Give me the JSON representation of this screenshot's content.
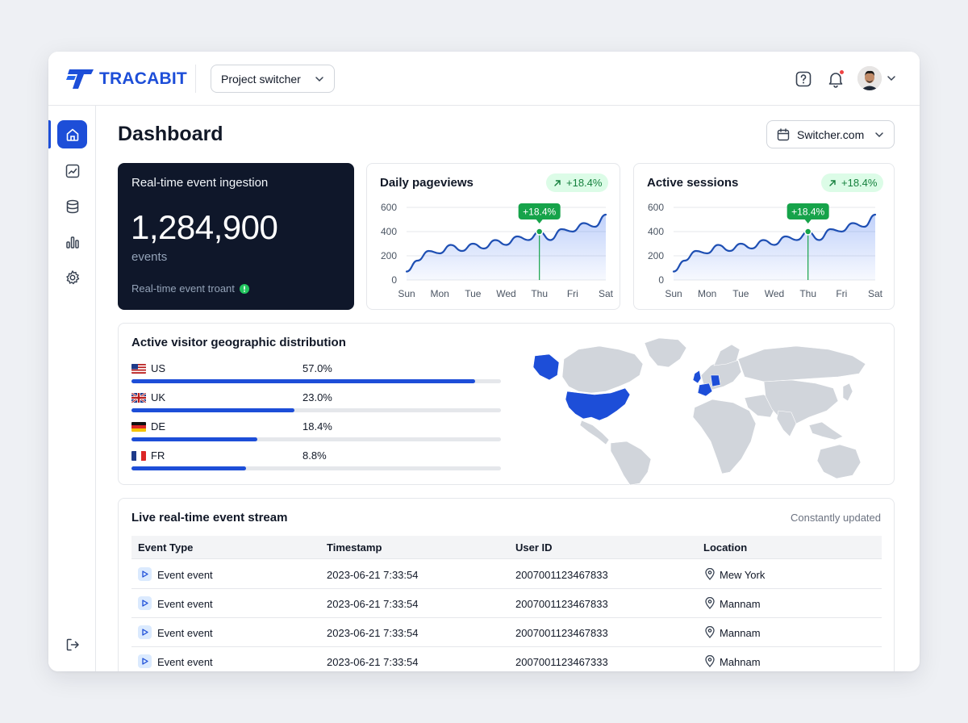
{
  "header": {
    "logo_text": "TRACABIT",
    "project_switcher_label": "Project switcher"
  },
  "page": {
    "title": "Dashboard",
    "site_selector_label": "Switcher.com"
  },
  "sidebar": {
    "items": [
      {
        "name": "home",
        "active": true
      },
      {
        "name": "trends"
      },
      {
        "name": "database"
      },
      {
        "name": "bar-chart"
      },
      {
        "name": "settings"
      }
    ],
    "bottom_item": "logout"
  },
  "ingestion": {
    "title": "Real-time event ingestion",
    "value": "1,284,900",
    "unit": "events",
    "footer": "Real-time event troant"
  },
  "pageviews": {
    "title": "Daily pageviews",
    "trend": "+18.4%",
    "highlight_label": "+18.4%"
  },
  "sessions": {
    "title": "Active sessions",
    "trend": "+18.4%",
    "highlight_label": "+18.4%"
  },
  "chart_data": [
    {
      "type": "area",
      "title": "Daily pageviews",
      "categories": [
        "Sun",
        "Mon",
        "Tue",
        "Wed",
        "Thu",
        "Fri",
        "Sat"
      ],
      "y_ticks": [
        "600",
        "400",
        "200",
        "0"
      ],
      "ylim": [
        0,
        600
      ],
      "x": [
        0,
        0.33,
        0.67,
        1,
        1.33,
        1.67,
        2,
        2.33,
        2.67,
        3,
        3.33,
        3.67,
        4,
        4.33,
        4.67,
        5,
        5.33,
        5.67,
        6
      ],
      "values": [
        70,
        160,
        240,
        220,
        290,
        240,
        300,
        260,
        330,
        290,
        360,
        330,
        400,
        330,
        420,
        400,
        470,
        440,
        540
      ],
      "highlight_index": 12,
      "grid": true,
      "color": "#1e4fb3"
    },
    {
      "type": "area",
      "title": "Active sessions",
      "categories": [
        "Sun",
        "Mon",
        "Tue",
        "Wed",
        "Thu",
        "Fri",
        "Sat"
      ],
      "y_ticks": [
        "600",
        "400",
        "200",
        "0"
      ],
      "ylim": [
        0,
        600
      ],
      "x": [
        0,
        0.33,
        0.67,
        1,
        1.33,
        1.67,
        2,
        2.33,
        2.67,
        3,
        3.33,
        3.67,
        4,
        4.33,
        4.67,
        5,
        5.33,
        5.67,
        6
      ],
      "values": [
        70,
        160,
        240,
        220,
        290,
        240,
        300,
        260,
        330,
        290,
        360,
        330,
        400,
        330,
        420,
        400,
        470,
        440,
        540
      ],
      "highlight_index": 12,
      "grid": true,
      "color": "#1e4fb3"
    }
  ],
  "geo": {
    "title": "Active visitor geographic distribution",
    "rows": [
      {
        "code": "US",
        "pct_label": "57.0%",
        "fill": 0.93
      },
      {
        "code": "UK",
        "pct_label": "23.0%",
        "fill": 0.44
      },
      {
        "code": "DE",
        "pct_label": "18.4%",
        "fill": 0.34
      },
      {
        "code": "FR",
        "pct_label": "8.8%",
        "fill": 0.31
      }
    ],
    "highlight_color": "#1d4ed8"
  },
  "stream": {
    "title": "Live real-time event stream",
    "subtitle": "Constantly updated",
    "columns": [
      "Event Type",
      "Timestamp",
      "User ID",
      "Location"
    ],
    "rows": [
      [
        "Event event",
        "2023-06-21 7:33:54",
        "2007001123467833",
        "Mew York"
      ],
      [
        "Event event",
        "2023-06-21 7:33:54",
        "2007001123467833",
        "Mannam"
      ],
      [
        "Event event",
        "2023-06-21 7:33:54",
        "2007001123467833",
        "Mannam"
      ],
      [
        "Event event",
        "2023-06-21 7:33:54",
        "2007001123467333",
        "Mahnam"
      ]
    ]
  },
  "colors": {
    "accent": "#1d4ed8",
    "dark_card": "#0f172a",
    "positive": "#16a34a"
  }
}
